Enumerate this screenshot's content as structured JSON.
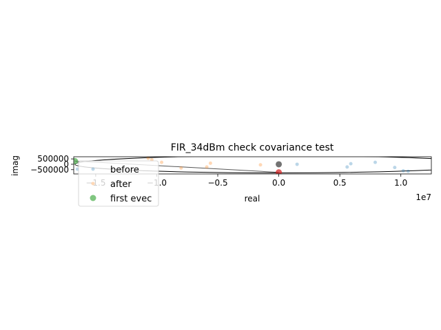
{
  "chart_data": {
    "type": "scatter",
    "title": "FIR_34dBm check covariance test",
    "xlabel": "real",
    "ylabel": "imag",
    "x_offset_label": "1e7",
    "xlim": [
      -16800000,
      12500000
    ],
    "ylim": [
      -900000,
      700000
    ],
    "x_ticks": [
      {
        "value": -15000000,
        "label": "−1.5"
      },
      {
        "value": -10000000,
        "label": "−1.0"
      },
      {
        "value": -5000000,
        "label": "−0.5"
      },
      {
        "value": 0,
        "label": "0.0"
      },
      {
        "value": 5000000,
        "label": "0.5"
      },
      {
        "value": 10000000,
        "label": "1.0"
      }
    ],
    "y_ticks": [
      {
        "value": 500000,
        "label": "500000"
      },
      {
        "value": 0,
        "label": "0"
      },
      {
        "value": -500000,
        "label": "−500000"
      }
    ],
    "series": [
      {
        "name": "before",
        "color": "#1f77b4",
        "alpha": 0.3,
        "points": [
          {
            "x": -16500000,
            "y": -450000
          },
          {
            "x": 1500000,
            "y": 0
          },
          {
            "x": 5600000,
            "y": -250000
          },
          {
            "x": 5900000,
            "y": 50000
          },
          {
            "x": 7900000,
            "y": 180000
          },
          {
            "x": 9500000,
            "y": -300000
          },
          {
            "x": 10200000,
            "y": -600000
          },
          {
            "x": 10600000,
            "y": -650000
          }
        ]
      },
      {
        "name": "after",
        "color": "#ff7f0e",
        "alpha": 0.3,
        "points": [
          {
            "x": -10700000,
            "y": 560000
          },
          {
            "x": -10400000,
            "y": 420000
          },
          {
            "x": -9600000,
            "y": 180000
          },
          {
            "x": -8000000,
            "y": -350000
          },
          {
            "x": -5900000,
            "y": -250000
          },
          {
            "x": -5600000,
            "y": 100000
          },
          {
            "x": -1500000,
            "y": -50000
          }
        ]
      },
      {
        "name": "first evec",
        "color": "#2ca02c",
        "alpha": 0.6,
        "points": [
          {
            "x": -16700000,
            "y": 300000
          }
        ]
      }
    ],
    "extra_points": [
      {
        "x": 0,
        "y": 0,
        "color": "#000000",
        "alpha": 0.55
      },
      {
        "x": 0,
        "y": -750000,
        "color": "#d62728",
        "alpha": 0.75
      }
    ],
    "ellipse": {
      "cx": 0,
      "cy": 0,
      "rx": 16700000,
      "ry": 800000,
      "color": "#000000"
    },
    "evec_line": {
      "x1": -16700000,
      "y1": 300000,
      "x2": 0,
      "y2": -750000,
      "color": "#555555"
    },
    "legend": {
      "placement": "lower-left"
    }
  }
}
